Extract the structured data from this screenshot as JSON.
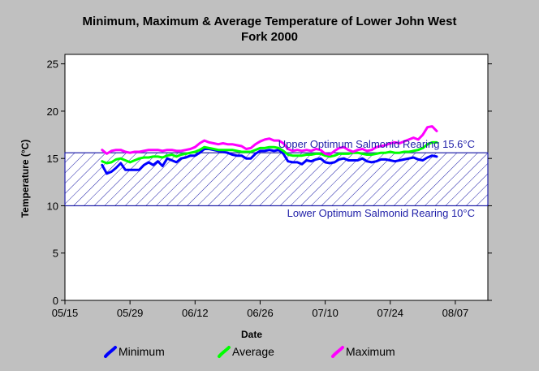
{
  "chart_data": {
    "type": "line",
    "title_lines": [
      "Minimum, Maximum & Average Temperature of Lower John West",
      "Fork 2000"
    ],
    "xlabel": "Date",
    "ylabel": "Temperature (°C)",
    "x_tick_labels": [
      "05/15",
      "05/29",
      "06/12",
      "06/26",
      "07/10",
      "07/24",
      "08/07"
    ],
    "x_ticks_day": [
      0,
      14,
      28,
      42,
      56,
      70,
      84
    ],
    "xlim_day": [
      0,
      91
    ],
    "y_tick_labels": [
      "0",
      "5",
      "10",
      "15",
      "20",
      "25"
    ],
    "y_ticks": [
      0,
      5,
      10,
      15,
      20,
      25
    ],
    "ylim": [
      0,
      26
    ],
    "grid": false,
    "legend_position": "bottom",
    "optimum_band": {
      "lower": 10,
      "upper": 15.6,
      "fill": "hatched",
      "upper_label": "Upper Optimum Salmonid Rearing 15.6°C",
      "lower_label": "Lower Optimum Salmonid Rearing 10°C"
    },
    "dates": [
      "05/23",
      "05/24",
      "05/25",
      "05/26",
      "05/27",
      "05/28",
      "05/29",
      "05/30",
      "05/31",
      "06/01",
      "06/02",
      "06/03",
      "06/04",
      "06/05",
      "06/06",
      "06/07",
      "06/08",
      "06/09",
      "06/10",
      "06/11",
      "06/12",
      "06/13",
      "06/14",
      "06/15",
      "06/16",
      "06/17",
      "06/18",
      "06/19",
      "06/20",
      "06/21",
      "06/22",
      "06/23",
      "06/24",
      "06/25",
      "06/26",
      "06/27",
      "06/28",
      "06/29",
      "06/30",
      "07/01",
      "07/02",
      "07/03",
      "07/04",
      "07/05",
      "07/06",
      "07/07",
      "07/08",
      "07/09",
      "07/10",
      "07/11",
      "07/12",
      "07/13",
      "07/14",
      "07/15",
      "07/16",
      "07/17",
      "07/18",
      "07/19",
      "07/20",
      "07/21",
      "07/22",
      "07/23",
      "07/24",
      "07/25",
      "07/26",
      "07/27",
      "07/28",
      "07/29",
      "07/30",
      "07/31",
      "08/01",
      "08/02",
      "08/03"
    ],
    "series": [
      {
        "name": "Minimum",
        "color": "#0000ff",
        "values": [
          14.3,
          13.4,
          13.6,
          14.0,
          14.5,
          13.8,
          13.8,
          13.8,
          13.8,
          14.3,
          14.6,
          14.3,
          14.7,
          14.2,
          15.0,
          14.8,
          14.6,
          15.0,
          15.1,
          15.3,
          15.3,
          15.6,
          16.0,
          16.0,
          15.9,
          15.8,
          15.7,
          15.6,
          15.4,
          15.3,
          15.3,
          15.0,
          15.0,
          15.5,
          15.8,
          15.8,
          15.9,
          15.8,
          15.9,
          15.5,
          14.7,
          14.6,
          14.6,
          14.4,
          14.8,
          14.7,
          14.9,
          15.0,
          14.6,
          14.5,
          14.6,
          14.9,
          15.0,
          14.8,
          14.8,
          14.8,
          15.0,
          14.7,
          14.6,
          14.7,
          14.9,
          14.9,
          14.8,
          14.7,
          14.8,
          14.9,
          15.0,
          15.1,
          14.9,
          14.8,
          15.1,
          15.3,
          15.2
        ]
      },
      {
        "name": "Average",
        "color": "#00ff00",
        "values": [
          14.7,
          14.5,
          14.6,
          14.9,
          15.0,
          14.8,
          14.6,
          14.8,
          15.0,
          15.1,
          15.1,
          15.2,
          15.2,
          15.1,
          15.3,
          15.4,
          15.2,
          15.4,
          15.5,
          15.6,
          15.7,
          15.9,
          16.2,
          16.1,
          16.0,
          15.9,
          15.9,
          15.9,
          15.9,
          15.8,
          15.7,
          15.7,
          15.7,
          15.9,
          16.1,
          16.1,
          16.2,
          16.2,
          16.1,
          15.8,
          15.4,
          15.3,
          15.3,
          15.3,
          15.4,
          15.4,
          15.5,
          15.5,
          15.3,
          15.2,
          15.3,
          15.5,
          15.5,
          15.5,
          15.6,
          15.6,
          15.5,
          15.4,
          15.4,
          15.5,
          15.6,
          15.6,
          15.7,
          15.6,
          15.6,
          15.7,
          15.7,
          15.8,
          15.9,
          16.1,
          16.5,
          16.7,
          16.7
        ]
      },
      {
        "name": "Maximum",
        "color": "#ff00ff",
        "values": [
          15.9,
          15.5,
          15.8,
          15.9,
          15.9,
          15.7,
          15.6,
          15.7,
          15.7,
          15.8,
          15.9,
          15.9,
          15.9,
          15.8,
          15.9,
          15.9,
          15.8,
          15.8,
          15.9,
          16.0,
          16.2,
          16.6,
          16.9,
          16.7,
          16.6,
          16.5,
          16.6,
          16.5,
          16.5,
          16.4,
          16.3,
          16.0,
          16.1,
          16.5,
          16.8,
          17.0,
          17.1,
          16.9,
          16.9,
          16.6,
          16.0,
          15.8,
          15.9,
          15.8,
          15.9,
          15.8,
          16.0,
          15.9,
          15.5,
          15.4,
          15.8,
          16.1,
          16.2,
          15.9,
          15.7,
          15.9,
          16.0,
          15.8,
          15.9,
          16.2,
          16.3,
          16.4,
          16.6,
          16.7,
          16.6,
          16.8,
          17.0,
          17.2,
          17.0,
          17.5,
          18.3,
          18.4,
          17.9
        ]
      }
    ]
  }
}
